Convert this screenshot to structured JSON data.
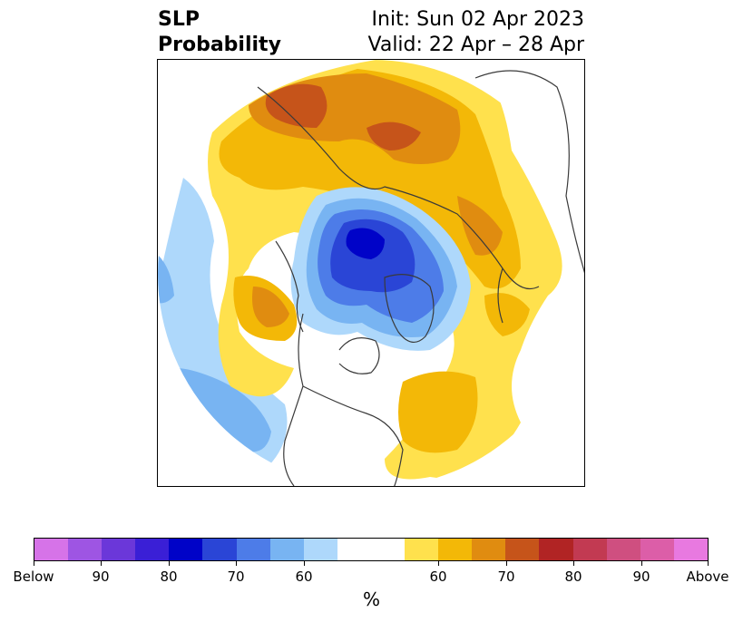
{
  "header": {
    "variable_line1": "SLP",
    "variable_line2": "Probability",
    "init_text": "Init: Sun 02 Apr 2023",
    "valid_text": "Valid: 22 Apr – 28 Apr"
  },
  "map": {
    "projection": "north-polar-stereographic",
    "colors": {
      "above_60": "#ffe14d",
      "above_65": "#f3b807",
      "above_70": "#e08c10",
      "above_75": "#c6541a",
      "below_60": "#aed8fb",
      "below_65": "#78b4f2",
      "below_70": "#4d7ce8",
      "below_75": "#2a45d6",
      "below_80": "#0003c8",
      "coastline": "#3a3a3a",
      "background": "#ffffff"
    }
  },
  "colorbar": {
    "segments": [
      "#d673e8",
      "#9e55e3",
      "#6b37d9",
      "#3a1fd6",
      "#0003c8",
      "#2a45d6",
      "#4d7ce8",
      "#78b4f2",
      "#aed8fb",
      "#ffffff",
      "#ffffff",
      "#ffe14d",
      "#f3b807",
      "#e08c10",
      "#c6541a",
      "#b12424",
      "#c23a52",
      "#cf4f80",
      "#dc5ea8",
      "#e879e0"
    ],
    "labels": [
      "Below",
      "90",
      "80",
      "70",
      "60",
      "60",
      "70",
      "80",
      "90",
      "Above"
    ],
    "label_positions": [
      0,
      2,
      4,
      6,
      8,
      12,
      14,
      16,
      18,
      20
    ],
    "unit": "%"
  }
}
